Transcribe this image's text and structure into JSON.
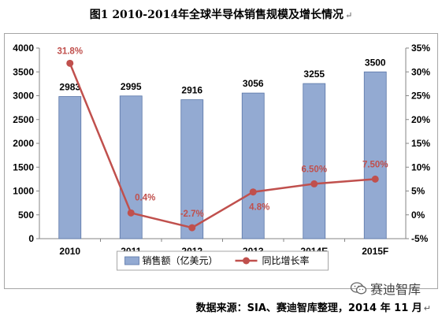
{
  "title": "图1    2010-2014年全球半导体销售规模及增长情况",
  "source": "数据来源：SIA、赛迪智库整理，2014 年 11 月",
  "paragraph_mark": "↵",
  "watermark": "赛迪智库",
  "colors": {
    "bar_fill": "#93aad2",
    "bar_stroke": "#5a76a8",
    "line": "#c0504d",
    "line_label": "#c0504d",
    "axis": "#868686"
  },
  "chart_data": {
    "type": "bar",
    "categories": [
      "2010",
      "2011",
      "2012",
      "2013",
      "2014E",
      "2015F"
    ],
    "series": [
      {
        "name": "销售额（亿美元）",
        "type": "bar",
        "axis": "left",
        "values": [
          2983,
          2995,
          2916,
          3056,
          3255,
          3500
        ],
        "labels": [
          "2983",
          "2995",
          "2916",
          "3056",
          "3255",
          "3500"
        ]
      },
      {
        "name": "同比增长率",
        "type": "line",
        "axis": "right",
        "values": [
          31.8,
          0.4,
          -2.7,
          4.8,
          6.5,
          7.5
        ],
        "labels": [
          "31.8%",
          "0.4%",
          "-2.7%",
          "4.8%",
          "6.50%",
          "7.50%"
        ]
      }
    ],
    "y_left": {
      "min": 0,
      "max": 4000,
      "ticks": [
        "0",
        "500",
        "1000",
        "1500",
        "2000",
        "2500",
        "3000",
        "3500",
        "4000"
      ]
    },
    "y_right": {
      "min": -5,
      "max": 35,
      "ticks": [
        "-5%",
        "0%",
        "5%",
        "10%",
        "15%",
        "20%",
        "25%",
        "30%",
        "35%"
      ]
    },
    "legend_position": "bottom",
    "grid": false
  }
}
